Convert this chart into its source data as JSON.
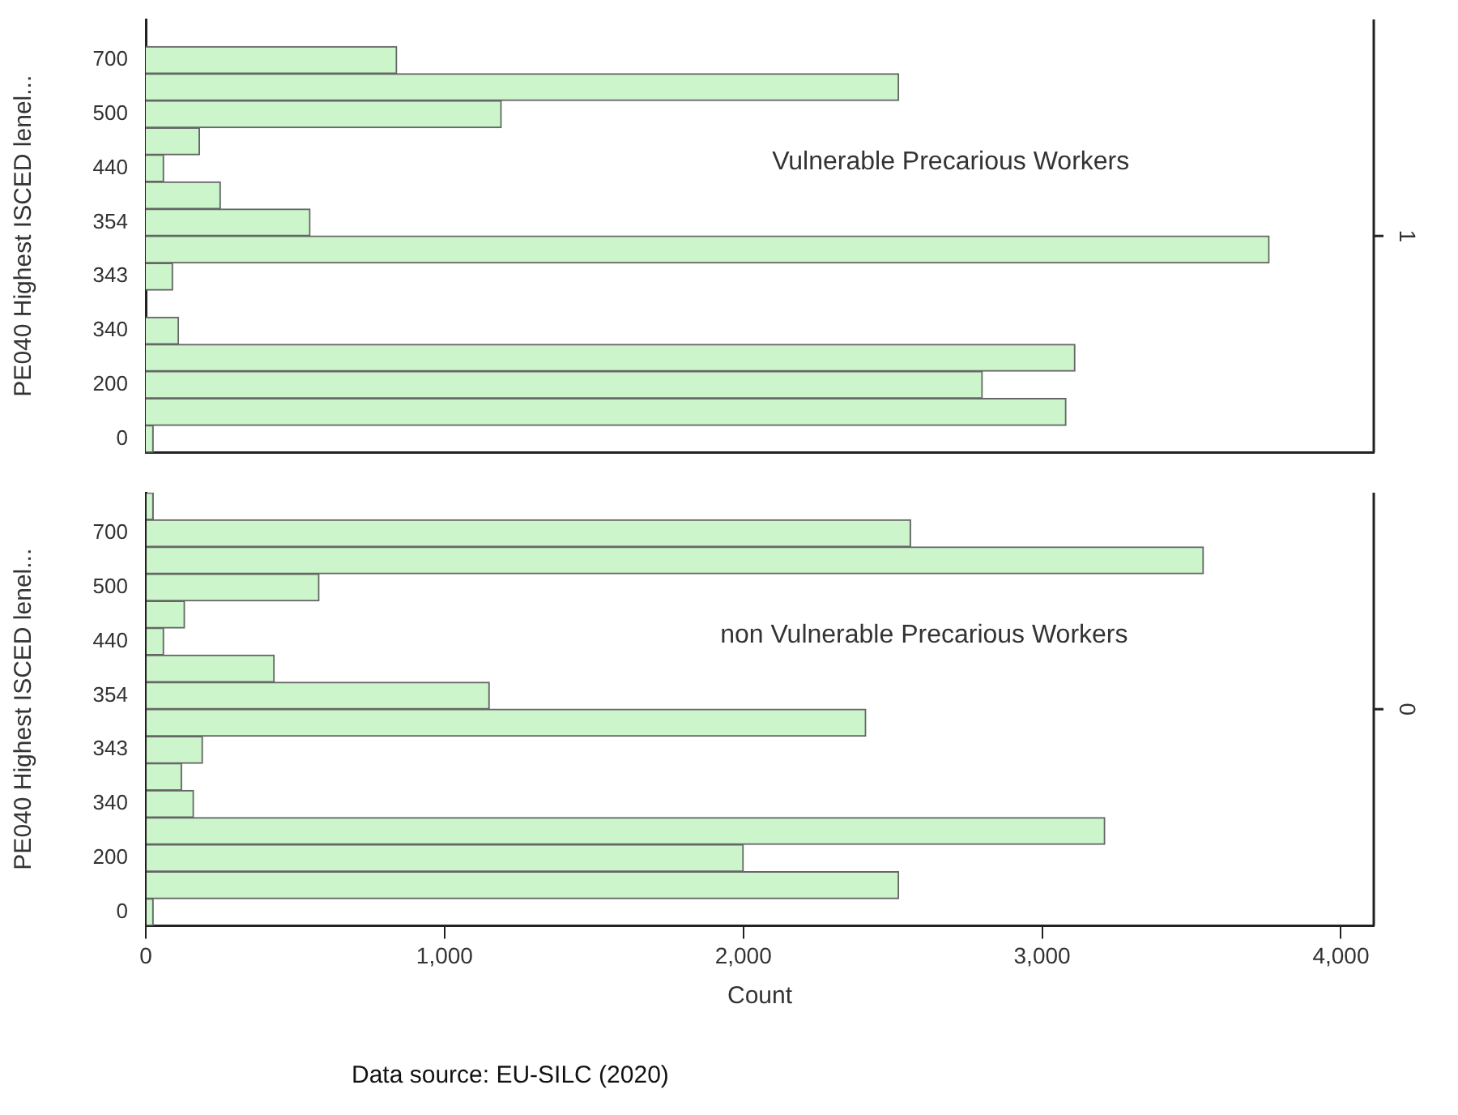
{
  "chart_data": [
    {
      "type": "bar",
      "orientation": "horizontal",
      "ylabel": "PE040 Highest ISCED lenel...",
      "categories": [
        null,
        "700",
        null,
        "500",
        null,
        "440",
        null,
        "354",
        null,
        "343",
        null,
        "340",
        null,
        "200",
        null,
        "0"
      ],
      "values": [
        null,
        840,
        2520,
        1190,
        180,
        60,
        250,
        550,
        3760,
        90,
        null,
        110,
        3110,
        2800,
        3080,
        25
      ],
      "color": "#ccf5cc",
      "xlim": [
        0,
        4110
      ],
      "tick_labels": "y",
      "grid": false,
      "legend": false,
      "annotations": [
        "Vulnerable Precarious Workers",
        "1"
      ]
    },
    {
      "type": "bar",
      "orientation": "horizontal",
      "ylabel": "PE040 Highest ISCED lenel...",
      "xlabel": "Count",
      "categories": [
        null,
        "700",
        null,
        "500",
        null,
        "440",
        null,
        "354",
        null,
        "343",
        null,
        "340",
        null,
        "200",
        null,
        "0"
      ],
      "values": [
        25,
        2560,
        3540,
        580,
        130,
        60,
        430,
        1150,
        2410,
        190,
        120,
        160,
        3210,
        2000,
        2520,
        25
      ],
      "color": "#ccf5cc",
      "xlim": [
        0,
        4110
      ],
      "xticks": [
        0,
        {
          "value": 1000,
          "label": "1,000"
        },
        {
          "value": 2000,
          "label": "2,000"
        },
        {
          "value": 3000,
          "label": "3,000"
        },
        {
          "value": 4000,
          "label": "4,000"
        }
      ],
      "grid": false,
      "legend": false,
      "annotations": [
        "non Vulnerable Precarious Workers",
        "0",
        "Data source: EU-SILC (2020)"
      ]
    }
  ]
}
